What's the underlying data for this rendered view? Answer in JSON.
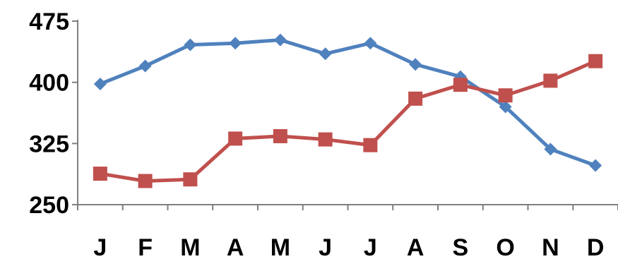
{
  "chart_data": {
    "type": "line",
    "categories": [
      "J",
      "F",
      "M",
      "A",
      "M",
      "J",
      "J",
      "A",
      "S",
      "O",
      "N",
      "D"
    ],
    "series": [
      {
        "color": "#4F81BD",
        "marker": "diamond",
        "values": [
          398,
          420,
          446,
          448,
          452,
          435,
          448,
          422,
          407,
          370,
          318,
          298
        ]
      },
      {
        "color": "#C0504D",
        "marker": "square",
        "values": [
          288,
          279,
          281,
          331,
          334,
          330,
          323,
          380,
          397,
          384,
          402,
          426
        ]
      }
    ],
    "ylim": [
      250,
      475
    ],
    "yticks": [
      "250",
      "325",
      "400",
      "475"
    ],
    "grid": false,
    "legend": "none"
  }
}
